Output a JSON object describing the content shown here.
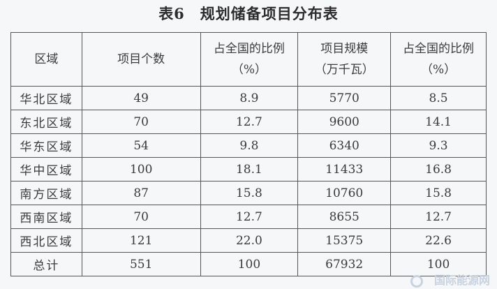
{
  "title": "表6　规划储备项目分布表",
  "headers": [
    [
      "区域"
    ],
    [
      "项目个数"
    ],
    [
      "占全国的比例",
      "（%）"
    ],
    [
      "项目规模",
      "（万千瓦）"
    ],
    [
      "占全国的比例",
      "（%）"
    ]
  ],
  "rows": [
    [
      "华北区域",
      "49",
      "8.9",
      "5770",
      "8.5"
    ],
    [
      "东北区域",
      "70",
      "12.7",
      "9600",
      "14.1"
    ],
    [
      "华东区域",
      "54",
      "9.8",
      "6340",
      "9.3"
    ],
    [
      "华中区域",
      "100",
      "18.1",
      "11433",
      "16.8"
    ],
    [
      "南方区域",
      "87",
      "15.8",
      "10760",
      "15.8"
    ],
    [
      "西南区域",
      "70",
      "12.7",
      "8655",
      "12.7"
    ],
    [
      "西北区域",
      "121",
      "22.0",
      "15375",
      "22.6"
    ],
    [
      "总计",
      "551",
      "100",
      "67932",
      "100"
    ]
  ],
  "watermark": "国际能源网"
}
